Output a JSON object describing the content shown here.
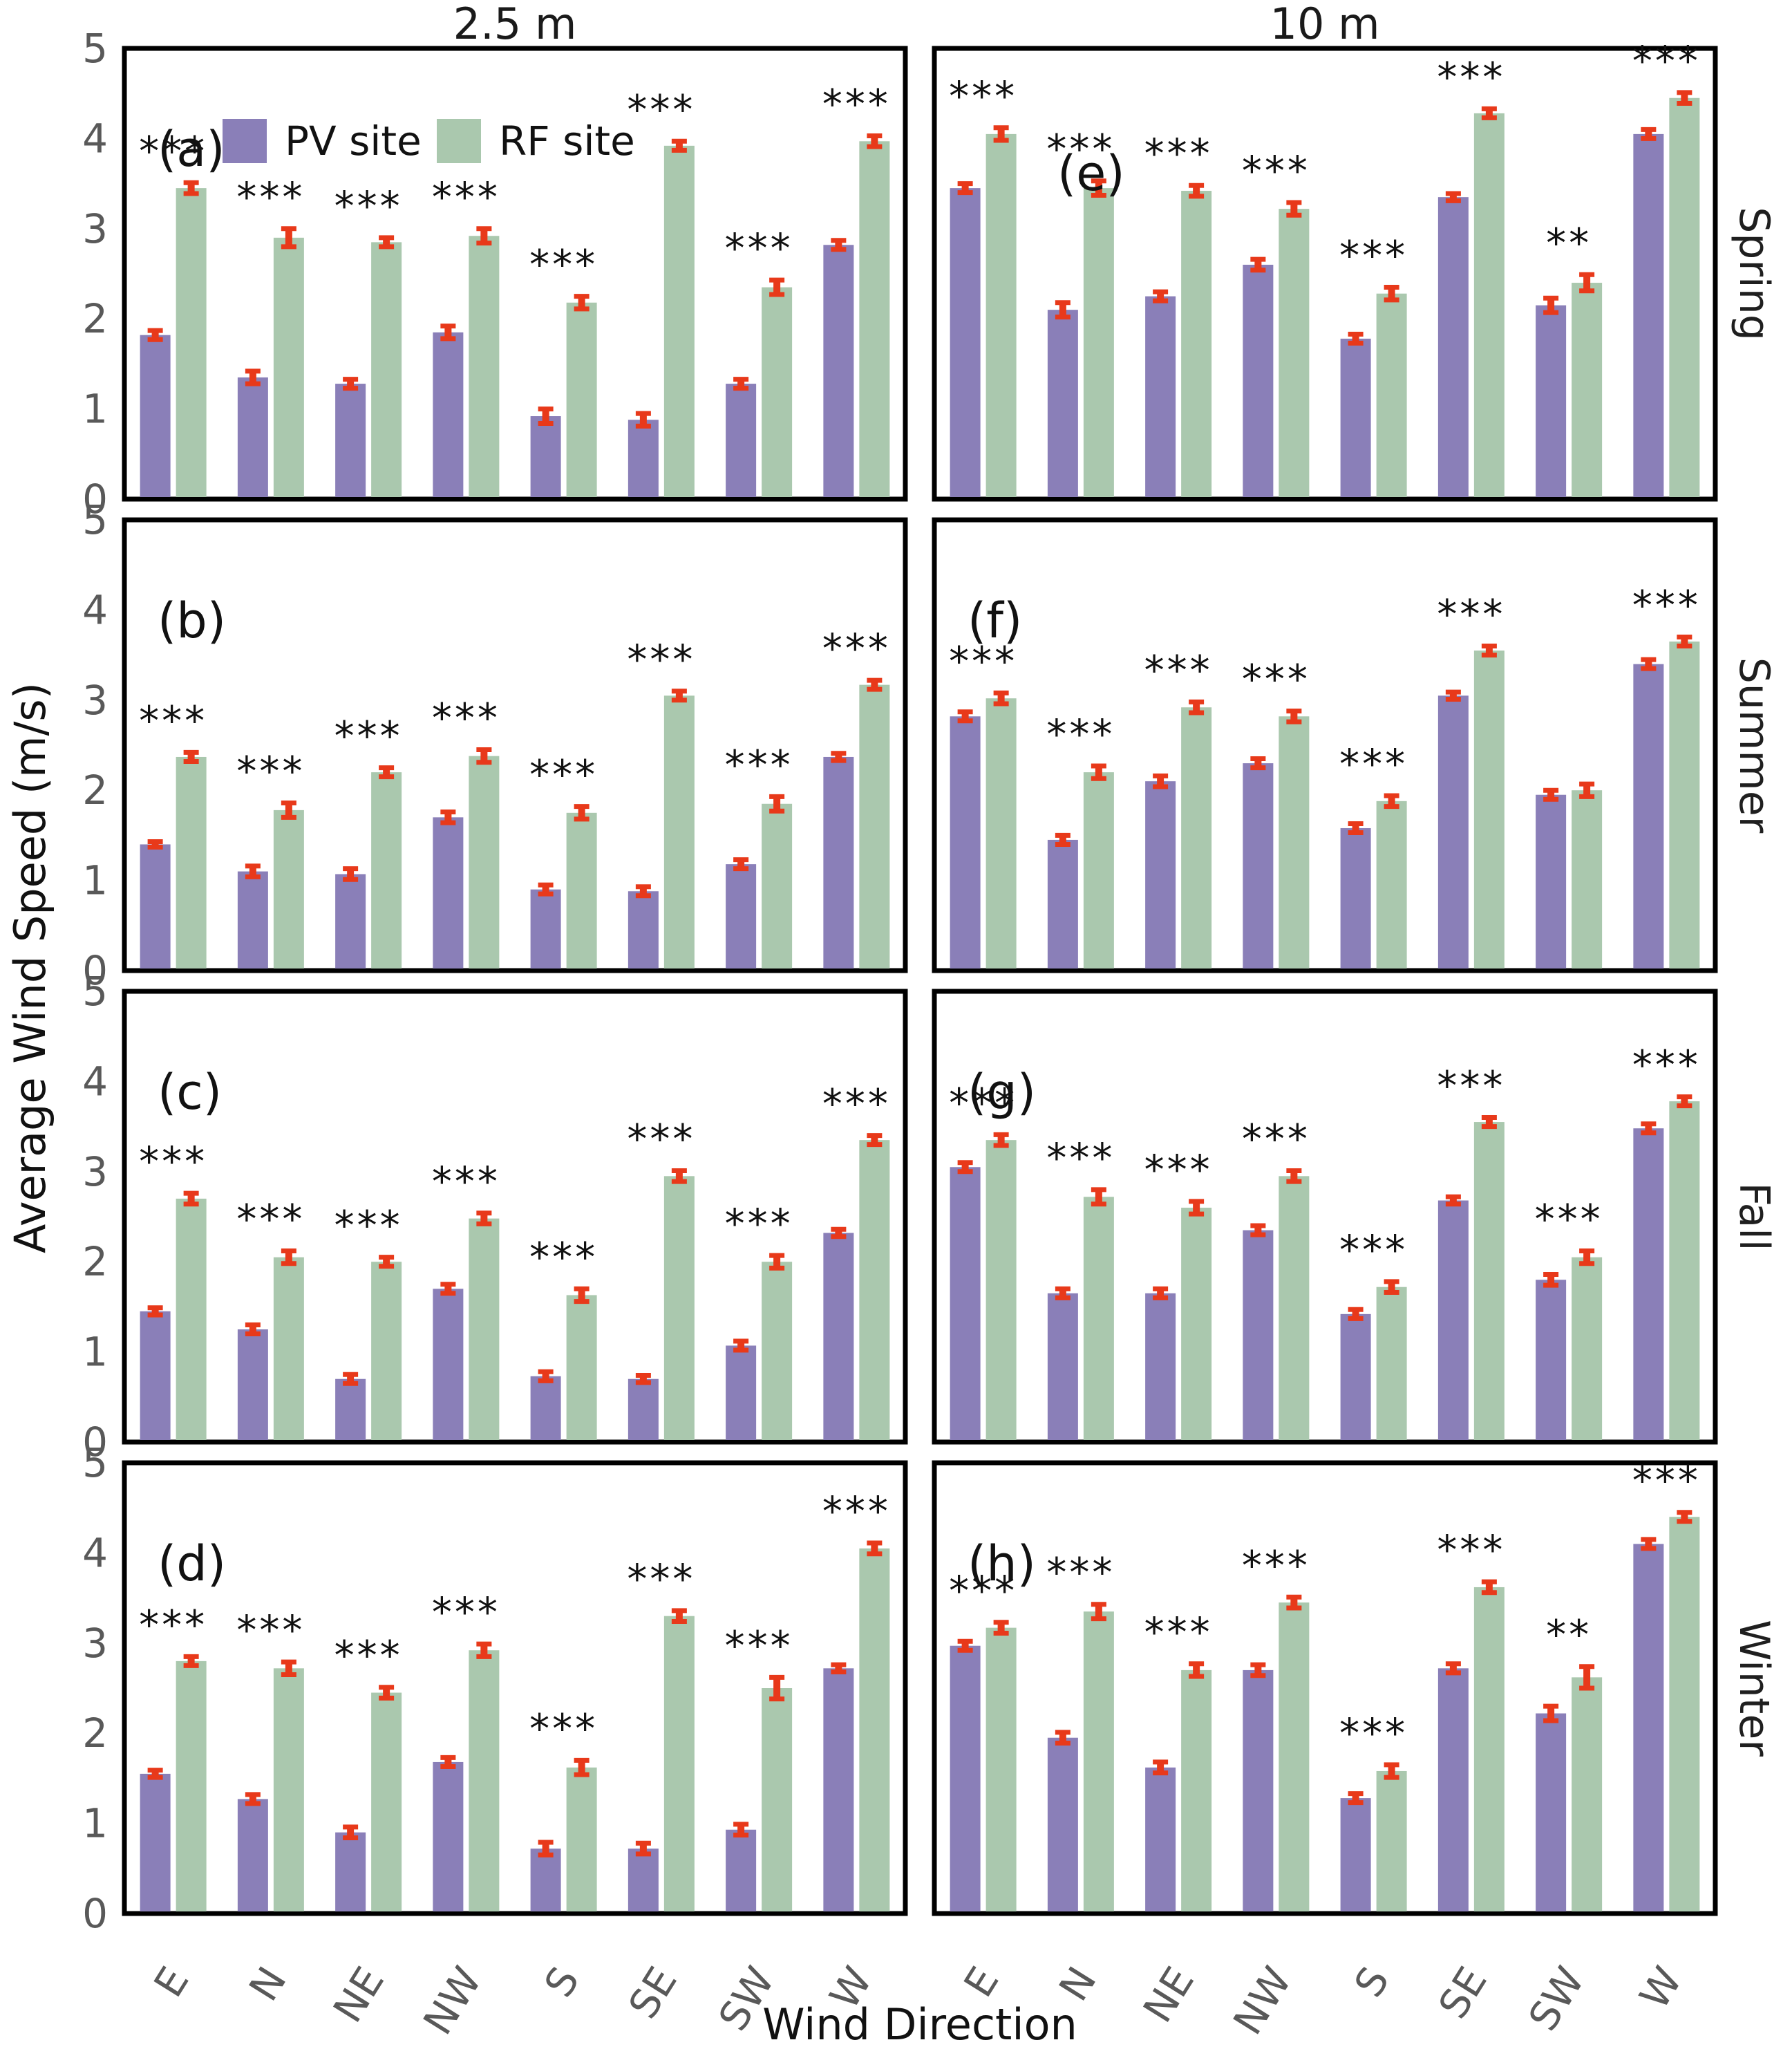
{
  "figure": {
    "col_titles": [
      "2.5 m",
      "10 m"
    ],
    "row_labels": [
      "Spring",
      "Summer",
      "Fall",
      "Winter"
    ],
    "ylabel": "Average Wind Speed (m/s)",
    "xlabel": "Wind Direction",
    "legend": {
      "pv": "PV site",
      "rf": "RF site"
    },
    "colors": {
      "pv": "#8a7fb8",
      "rf": "#aac8ae",
      "error_bar": "#e8391a",
      "tick_label": "#595959",
      "panel_border": "#000000",
      "text": "#111111"
    }
  },
  "chart_data": {
    "type": "bar",
    "categories": [
      "E",
      "N",
      "NE",
      "NW",
      "S",
      "SE",
      "SW",
      "W"
    ],
    "ylim": [
      0,
      5
    ],
    "yticks": [
      5,
      4,
      3,
      2,
      1,
      0
    ],
    "grid": false,
    "legend_position": "top-left of panel (a)",
    "series_names": [
      "PV site",
      "RF site"
    ],
    "panels": [
      {
        "label": "(a)",
        "row": 0,
        "col": 0,
        "height": "2.5 m",
        "season": "Spring",
        "series": [
          {
            "name": "PV site",
            "values": [
              1.82,
              1.35,
              1.28,
              1.85,
              0.92,
              0.88,
              1.28,
              2.82
            ],
            "err": [
              0.05,
              0.07,
              0.05,
              0.07,
              0.08,
              0.07,
              0.05,
              0.05
            ]
          },
          {
            "name": "RF site",
            "values": [
              3.45,
              2.9,
              2.85,
              2.92,
              2.18,
              3.92,
              2.35,
              3.97
            ],
            "err": [
              0.06,
              0.1,
              0.05,
              0.08,
              0.07,
              0.05,
              0.08,
              0.06
            ]
          }
        ],
        "sig": [
          "***",
          "***",
          "***",
          "***",
          "***",
          "***",
          "***",
          "***"
        ]
      },
      {
        "label": "(b)",
        "row": 1,
        "col": 0,
        "height": "2.5 m",
        "season": "Summer",
        "series": [
          {
            "name": "PV site",
            "values": [
              1.4,
              1.1,
              1.07,
              1.7,
              0.9,
              0.88,
              1.18,
              2.37
            ],
            "err": [
              0.03,
              0.06,
              0.06,
              0.06,
              0.05,
              0.05,
              0.05,
              0.04
            ]
          },
          {
            "name": "RF site",
            "values": [
              2.37,
              1.78,
              2.2,
              2.38,
              1.75,
              3.05,
              1.85,
              3.17
            ],
            "err": [
              0.05,
              0.08,
              0.05,
              0.07,
              0.07,
              0.05,
              0.08,
              0.05
            ]
          }
        ],
        "sig": [
          "***",
          "***",
          "***",
          "***",
          "***",
          "***",
          "***",
          "***"
        ]
      },
      {
        "label": "(c)",
        "row": 2,
        "col": 0,
        "height": "2.5 m",
        "season": "Fall",
        "series": [
          {
            "name": "PV site",
            "values": [
              1.45,
              1.25,
              0.7,
              1.7,
              0.73,
              0.7,
              1.07,
              2.32
            ],
            "err": [
              0.04,
              0.05,
              0.05,
              0.05,
              0.05,
              0.04,
              0.05,
              0.04
            ]
          },
          {
            "name": "RF site",
            "values": [
              2.7,
              2.05,
              2.0,
              2.48,
              1.63,
              2.95,
              2.0,
              3.35
            ],
            "err": [
              0.06,
              0.07,
              0.05,
              0.06,
              0.07,
              0.06,
              0.07,
              0.05
            ]
          }
        ],
        "sig": [
          "***",
          "***",
          "***",
          "***",
          "***",
          "***",
          "***",
          "***"
        ]
      },
      {
        "label": "(d)",
        "row": 3,
        "col": 0,
        "height": "2.5 m",
        "season": "Winter",
        "series": [
          {
            "name": "PV site",
            "values": [
              1.55,
              1.27,
              0.9,
              1.68,
              0.72,
              0.72,
              0.93,
              2.72
            ],
            "err": [
              0.04,
              0.05,
              0.06,
              0.05,
              0.07,
              0.06,
              0.06,
              0.04
            ]
          },
          {
            "name": "RF site",
            "values": [
              2.8,
              2.72,
              2.45,
              2.92,
              1.62,
              3.3,
              2.5,
              4.05
            ],
            "err": [
              0.05,
              0.07,
              0.06,
              0.07,
              0.08,
              0.06,
              0.12,
              0.06
            ]
          }
        ],
        "sig": [
          "***",
          "***",
          "***",
          "***",
          "***",
          "***",
          "***",
          "***"
        ]
      },
      {
        "label": "(e)",
        "row": 0,
        "col": 1,
        "height": "10 m",
        "season": "Spring",
        "series": [
          {
            "name": "PV site",
            "values": [
              3.45,
              2.1,
              2.25,
              2.6,
              1.78,
              3.35,
              2.15,
              4.05
            ],
            "err": [
              0.05,
              0.08,
              0.05,
              0.06,
              0.05,
              0.04,
              0.08,
              0.05
            ]
          },
          {
            "name": "RF site",
            "values": [
              4.05,
              3.45,
              3.42,
              3.22,
              2.28,
              4.28,
              2.4,
              4.45
            ],
            "err": [
              0.07,
              0.08,
              0.06,
              0.07,
              0.07,
              0.05,
              0.09,
              0.06
            ]
          }
        ],
        "sig": [
          "***",
          "***",
          "***",
          "***",
          "***",
          "***",
          "**",
          "***"
        ]
      },
      {
        "label": "(f)",
        "row": 1,
        "col": 1,
        "height": "10 m",
        "season": "Summer",
        "series": [
          {
            "name": "PV site",
            "values": [
              2.82,
              1.45,
              2.1,
              2.3,
              1.58,
              3.05,
              1.95,
              3.4
            ],
            "err": [
              0.05,
              0.05,
              0.06,
              0.05,
              0.05,
              0.04,
              0.05,
              0.05
            ]
          },
          {
            "name": "RF site",
            "values": [
              3.02,
              2.2,
              2.92,
              2.82,
              1.88,
              3.55,
              2.0,
              3.65
            ],
            "err": [
              0.06,
              0.07,
              0.06,
              0.06,
              0.06,
              0.05,
              0.07,
              0.05
            ]
          }
        ],
        "sig": [
          "***",
          "***",
          "***",
          "***",
          "***",
          "***",
          "",
          "***"
        ]
      },
      {
        "label": "(g)",
        "row": 2,
        "col": 1,
        "height": "10 m",
        "season": "Fall",
        "series": [
          {
            "name": "PV site",
            "values": [
              3.05,
              1.65,
              1.65,
              2.35,
              1.42,
              2.68,
              1.8,
              3.48
            ],
            "err": [
              0.05,
              0.05,
              0.05,
              0.05,
              0.05,
              0.04,
              0.06,
              0.05
            ]
          },
          {
            "name": "RF site",
            "values": [
              3.35,
              2.72,
              2.6,
              2.95,
              1.72,
              3.55,
              2.05,
              3.78
            ],
            "err": [
              0.06,
              0.08,
              0.07,
              0.06,
              0.06,
              0.05,
              0.07,
              0.05
            ]
          }
        ],
        "sig": [
          "***",
          "***",
          "***",
          "***",
          "***",
          "***",
          "***",
          "***"
        ]
      },
      {
        "label": "(h)",
        "row": 3,
        "col": 1,
        "height": "10 m",
        "season": "Winter",
        "series": [
          {
            "name": "PV site",
            "values": [
              2.97,
              1.95,
              1.62,
              2.7,
              1.28,
              2.72,
              2.22,
              4.1
            ],
            "err": [
              0.05,
              0.06,
              0.06,
              0.06,
              0.05,
              0.05,
              0.08,
              0.05
            ]
          },
          {
            "name": "RF site",
            "values": [
              3.17,
              3.35,
              2.7,
              3.45,
              1.58,
              3.62,
              2.62,
              4.4
            ],
            "err": [
              0.06,
              0.08,
              0.07,
              0.06,
              0.07,
              0.06,
              0.12,
              0.05
            ]
          }
        ],
        "sig": [
          "***",
          "***",
          "***",
          "***",
          "***",
          "***",
          "**",
          "***"
        ]
      }
    ]
  }
}
